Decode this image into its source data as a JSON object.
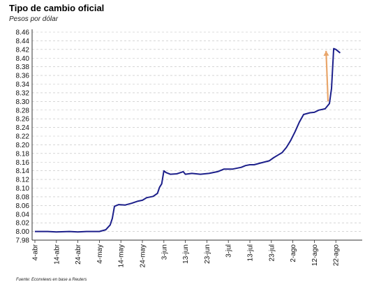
{
  "title": "Tipo de cambio oficial",
  "subtitle": "Pesos por dólar",
  "source": "Fuente: Econviews en base a Reuters",
  "colors": {
    "line": "#1c1f8a",
    "arrow": "#e9a66b",
    "grid": "#bdbdbd"
  },
  "chart_data": {
    "type": "line",
    "title": "Tipo de cambio oficial",
    "ylabel": "Pesos por dólar",
    "ylim": [
      7.98,
      8.46
    ],
    "yticks": [
      "7.98",
      "8.00",
      "8.02",
      "8.04",
      "8.06",
      "8.08",
      "8.10",
      "8.12",
      "8.14",
      "8.16",
      "8.18",
      "8.20",
      "8.22",
      "8.24",
      "8.26",
      "8.28",
      "8.30",
      "8.32",
      "8.34",
      "8.36",
      "8.38",
      "8.40",
      "8.42",
      "8.44",
      "8.46"
    ],
    "xticks": [
      "4-abr",
      "14-abr",
      "24-abr",
      "4-may",
      "14-may",
      "24-may",
      "3-jun",
      "13-jun",
      "23-jun",
      "3-jul",
      "13-jul",
      "23-jul",
      "2-ago",
      "12-ago",
      "22-ago"
    ],
    "grid": true,
    "annotations": [
      {
        "type": "arrow",
        "from": [
          "20-ago",
          8.3
        ],
        "to": [
          "22-ago",
          8.42
        ]
      }
    ],
    "series": [
      {
        "values": [
          [
            "4-abr",
            8.0
          ],
          [
            "10-abr",
            8.0
          ],
          [
            "14-abr",
            7.999
          ],
          [
            "20-abr",
            8.0
          ],
          [
            "24-abr",
            7.999
          ],
          [
            "28-abr",
            8.0
          ],
          [
            "4-may",
            8.0
          ],
          [
            "7-may",
            8.004
          ],
          [
            "9-may",
            8.015
          ],
          [
            "10-may",
            8.03
          ],
          [
            "11-may",
            8.058
          ],
          [
            "13-may",
            8.062
          ],
          [
            "16-may",
            8.061
          ],
          [
            "19-may",
            8.065
          ],
          [
            "22-may",
            8.07
          ],
          [
            "24-may",
            8.072
          ],
          [
            "26-may",
            8.078
          ],
          [
            "29-may",
            8.081
          ],
          [
            "31-may",
            8.088
          ],
          [
            "1-jun",
            8.102
          ],
          [
            "2-jun",
            8.11
          ],
          [
            "3-jun",
            8.14
          ],
          [
            "4-jun",
            8.136
          ],
          [
            "6-jun",
            8.132
          ],
          [
            "9-jun",
            8.133
          ],
          [
            "12-jun",
            8.138
          ],
          [
            "13-jun",
            8.132
          ],
          [
            "16-jun",
            8.134
          ],
          [
            "20-jun",
            8.132
          ],
          [
            "24-jun",
            8.134
          ],
          [
            "28-jun",
            8.138
          ],
          [
            "1-jul",
            8.144
          ],
          [
            "5-jul",
            8.144
          ],
          [
            "9-jul",
            8.148
          ],
          [
            "11-jul",
            8.152
          ],
          [
            "13-jul",
            8.154
          ],
          [
            "15-jul",
            8.154
          ],
          [
            "18-jul",
            8.158
          ],
          [
            "22-jul",
            8.163
          ],
          [
            "24-jul",
            8.17
          ],
          [
            "26-jul",
            8.176
          ],
          [
            "28-jul",
            8.182
          ],
          [
            "30-jul",
            8.194
          ],
          [
            "1-ago",
            8.21
          ],
          [
            "3-ago",
            8.23
          ],
          [
            "5-ago",
            8.252
          ],
          [
            "7-ago",
            8.27
          ],
          [
            "10-ago",
            8.274
          ],
          [
            "12-ago",
            8.275
          ],
          [
            "14-ago",
            8.28
          ],
          [
            "17-ago",
            8.283
          ],
          [
            "19-ago",
            8.295
          ],
          [
            "20-ago",
            8.33
          ],
          [
            "21-ago",
            8.422
          ],
          [
            "22-ago",
            8.42
          ],
          [
            "24-ago",
            8.412
          ]
        ]
      }
    ]
  }
}
